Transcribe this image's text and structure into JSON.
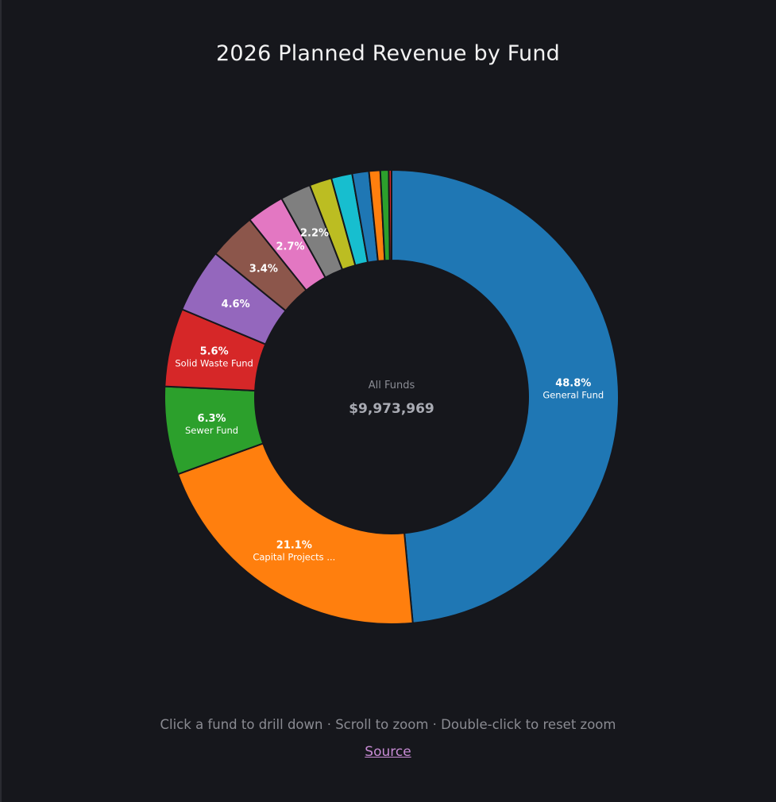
{
  "page": {
    "title": "2026 Planned Revenue by Fund",
    "hint": "Click a fund to drill down · Scroll to zoom · Double-click to reset zoom",
    "source_label": "Source"
  },
  "chart_data": {
    "type": "pie",
    "variant": "donut",
    "title": "2026 Planned Revenue by Fund",
    "center": {
      "label": "All Funds",
      "value": "$9,973,969"
    },
    "slices": [
      {
        "name": "General Fund",
        "display_name": "General Fund",
        "percent": 48.8,
        "percent_label": "48.8%",
        "show_label": true,
        "show_name": true,
        "color": "#1f77b4"
      },
      {
        "name": "Capital Projects ...",
        "display_name": "Capital Projects ...",
        "percent": 21.1,
        "percent_label": "21.1%",
        "show_label": true,
        "show_name": true,
        "color": "#ff7f0e"
      },
      {
        "name": "Sewer Fund",
        "display_name": "Sewer Fund",
        "percent": 6.3,
        "percent_label": "6.3%",
        "show_label": true,
        "show_name": true,
        "color": "#2ca02c"
      },
      {
        "name": "Solid Waste Fund",
        "display_name": "Solid Waste Fund",
        "percent": 5.6,
        "percent_label": "5.6%",
        "show_label": true,
        "show_name": true,
        "color": "#d62728"
      },
      {
        "percent": 4.6,
        "percent_label": "4.6%",
        "show_label": true,
        "show_name": false,
        "color": "#9467bd"
      },
      {
        "percent": 3.4,
        "percent_label": "3.4%",
        "show_label": true,
        "show_name": false,
        "color": "#8c564b"
      },
      {
        "percent": 2.7,
        "percent_label": "2.7%",
        "show_label": true,
        "show_name": false,
        "color": "#e377c2"
      },
      {
        "percent": 2.2,
        "percent_label": "2.2%",
        "show_label": true,
        "show_name": false,
        "color": "#7f7f7f"
      },
      {
        "percent": 1.6,
        "show_label": false,
        "show_name": false,
        "color": "#bcbd22"
      },
      {
        "percent": 1.5,
        "show_label": false,
        "show_name": false,
        "color": "#17becf"
      },
      {
        "percent": 1.2,
        "show_label": false,
        "show_name": false,
        "color": "#1f77b4"
      },
      {
        "percent": 0.8,
        "show_label": false,
        "show_name": false,
        "color": "#ff7f0e"
      },
      {
        "percent": 0.6,
        "show_label": false,
        "show_name": false,
        "color": "#2ca02c"
      },
      {
        "percent": 0.2,
        "show_label": false,
        "show_name": false,
        "color": "#d62728"
      }
    ],
    "legend": "none"
  }
}
